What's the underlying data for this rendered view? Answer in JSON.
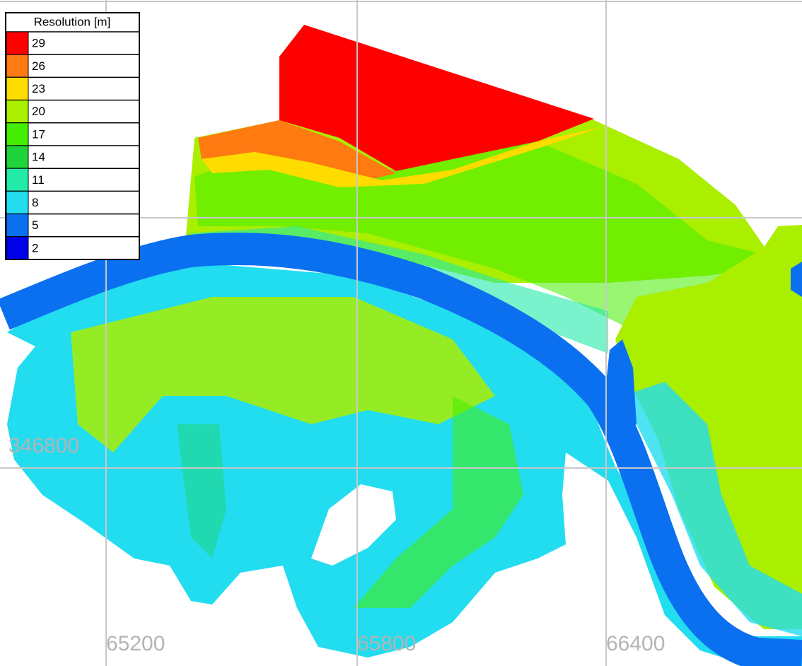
{
  "legend": {
    "title": "Resolution [m]",
    "items": [
      {
        "label": 29,
        "color": "#ff0000"
      },
      {
        "label": 26,
        "color": "#ff7a10"
      },
      {
        "label": 23,
        "color": "#ffdc00"
      },
      {
        "label": 20,
        "color": "#aaee00"
      },
      {
        "label": 17,
        "color": "#44ee00"
      },
      {
        "label": 14,
        "color": "#1fd43a"
      },
      {
        "label": 11,
        "color": "#22eaa8"
      },
      {
        "label": 8,
        "color": "#22dcf0"
      },
      {
        "label": 5,
        "color": "#0a70f0"
      },
      {
        "label": 2,
        "color": "#0000e8"
      }
    ]
  },
  "grid": {
    "x_labels": [
      "65200",
      "65800",
      "66400"
    ],
    "y_labels": [
      "346800"
    ]
  }
}
